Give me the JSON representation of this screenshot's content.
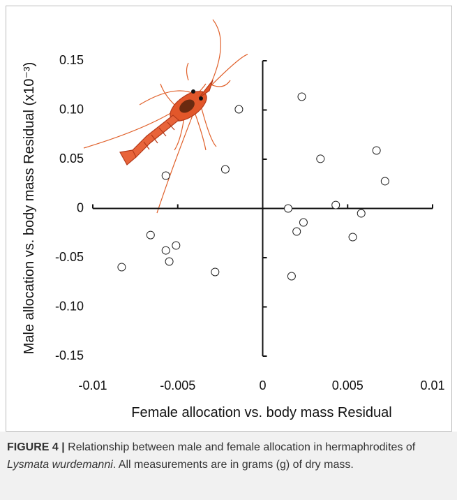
{
  "chart_data": {
    "type": "scatter",
    "x_label": "Female allocation vs. body mass Residual",
    "y_label": "Male allocation vs. body mass Residual (x10⁻³)",
    "x": [
      0.0023,
      -0.0014,
      0.0034,
      0.0067,
      0.0072,
      -0.0022,
      -0.0057,
      0.0015,
      0.0043,
      0.0058,
      0.0024,
      0.002,
      0.0053,
      -0.0066,
      -0.0051,
      -0.0057,
      -0.0055,
      -0.0028,
      -0.0083,
      0.0017
    ],
    "values": [
      0.1135,
      0.1007,
      0.0504,
      0.0589,
      0.0277,
      0.0397,
      0.0333,
      0,
      0.0035,
      -0.005,
      -0.0142,
      -0.0234,
      -0.0291,
      -0.027,
      -0.0376,
      -0.0426,
      -0.0539,
      -0.0645,
      -0.0596,
      -0.0688
    ],
    "color": "#ffffff",
    "edge_color": "#222222",
    "xlim": [
      -0.01,
      0.01
    ],
    "xticks": [
      -0.01,
      -0.005,
      0,
      0.005,
      0.01
    ],
    "ylim": [
      -0.15,
      0.15
    ],
    "yticks": [
      0.15,
      {
        "value": 0.1,
        "label": "0.10"
      },
      0.05,
      0,
      -0.05,
      {
        "value": -0.1,
        "label": "-0.10"
      },
      -0.15
    ]
  },
  "caption": {
    "label": "FIGURE 4 |",
    "text_before": " Relationship between male and female allocation in hermaphrodites of ",
    "species": "Lysmata wurdemanni",
    "text_after": ". All measurements are in grams (g) of dry mass."
  }
}
